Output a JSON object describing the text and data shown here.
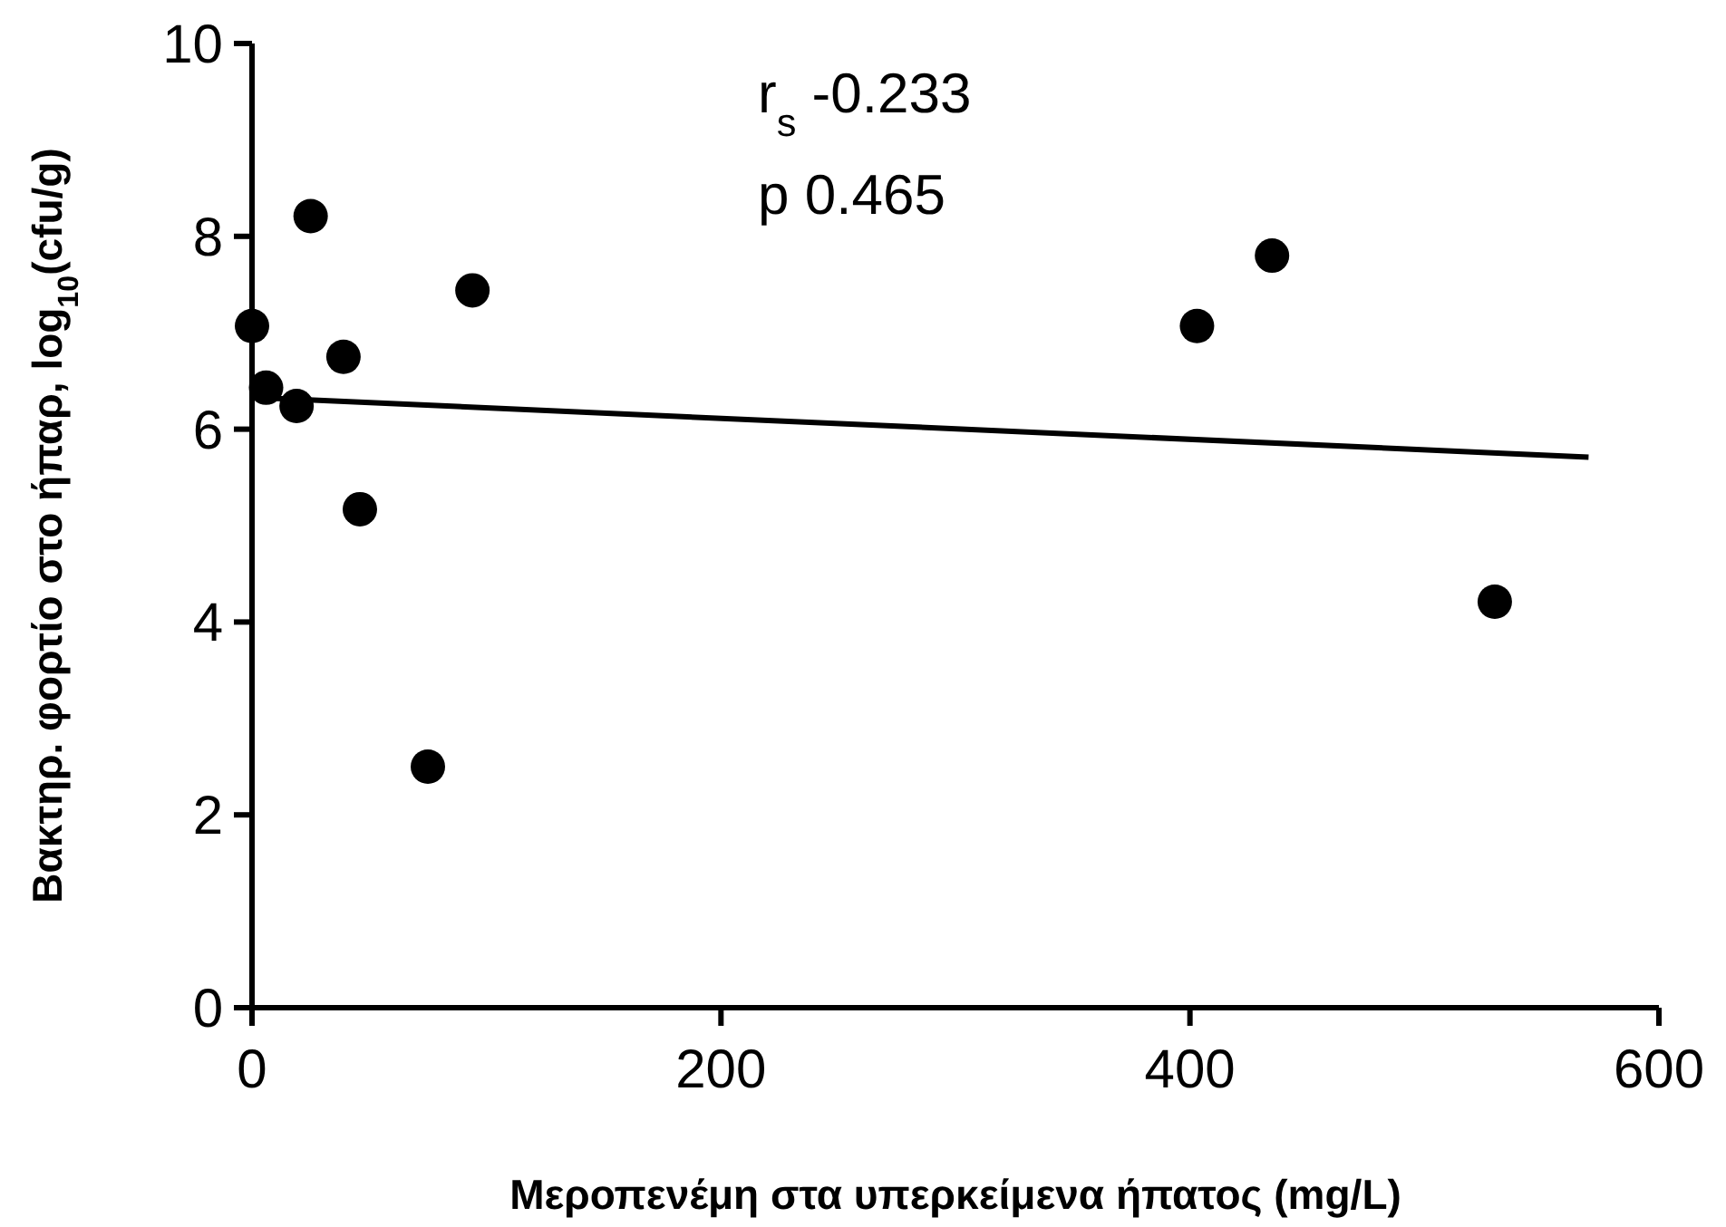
{
  "chart_data": {
    "type": "scatter",
    "xlabel": "Μεροπενέμη στα υπερκείμενα ήπατος (mg/L)",
    "ylabel": "Βακτηρ. φορτίο στο ήπαρ, log$_{10}$(cfu/g)",
    "annotations": [
      "r$_{s}$ -0.233",
      "p 0.465"
    ],
    "xlim": [
      0,
      600
    ],
    "xticks": [
      0,
      200,
      400,
      600
    ],
    "ylim": [
      0,
      10
    ],
    "yticks": [
      0,
      2,
      4,
      6,
      8,
      10
    ],
    "grid": false,
    "marker": "circle",
    "series": [
      {
        "type": "scatter",
        "color": "#000000",
        "x": [
          0,
          6,
          19,
          25,
          39,
          46,
          75,
          94,
          403,
          435,
          530
        ],
        "values": [
          7.07,
          6.43,
          6.24,
          8.21,
          6.75,
          5.17,
          2.5,
          7.44,
          7.07,
          7.8,
          4.21
        ]
      },
      {
        "type": "line",
        "color": "#000000",
        "marker": "none",
        "x": [
          0,
          570
        ],
        "values": [
          6.33,
          5.71
        ]
      }
    ]
  }
}
